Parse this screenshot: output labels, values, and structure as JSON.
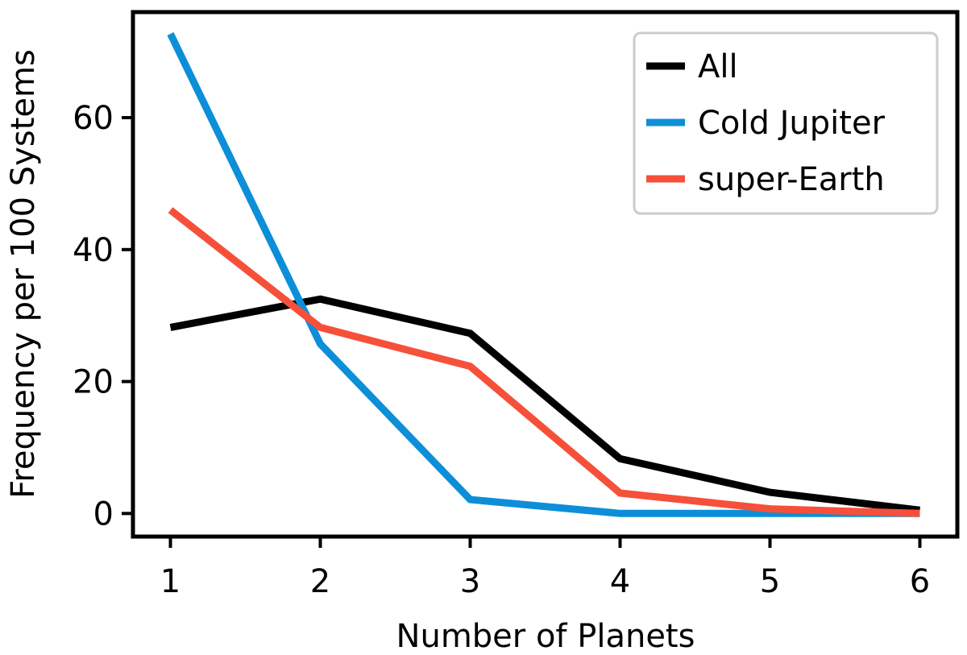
{
  "chart_data": {
    "type": "line",
    "title": "",
    "xlabel": "Number of Planets",
    "ylabel": "Frequency per 100 Systems",
    "x": [
      1,
      2,
      3,
      4,
      5,
      6
    ],
    "xticks": [
      "1",
      "2",
      "3",
      "4",
      "5",
      "6"
    ],
    "yticks": [
      "0",
      "20",
      "40",
      "60"
    ],
    "xlim": [
      0.75,
      6.25
    ],
    "ylim": [
      -3.5,
      76
    ],
    "grid": false,
    "legend_position": "top-right",
    "series": [
      {
        "name": "All",
        "color": "#000000",
        "values": [
          28.2,
          32.5,
          27.3,
          8.3,
          3.2,
          0.5
        ]
      },
      {
        "name": "Cold Jupiter",
        "color": "#0C8FD8",
        "values": [
          72.7,
          25.7,
          2.1,
          0.0,
          0.0,
          0.0
        ]
      },
      {
        "name": "super-Earth",
        "color": "#F6503A",
        "values": [
          46.0,
          28.2,
          22.3,
          3.1,
          0.7,
          0.0
        ]
      }
    ]
  }
}
